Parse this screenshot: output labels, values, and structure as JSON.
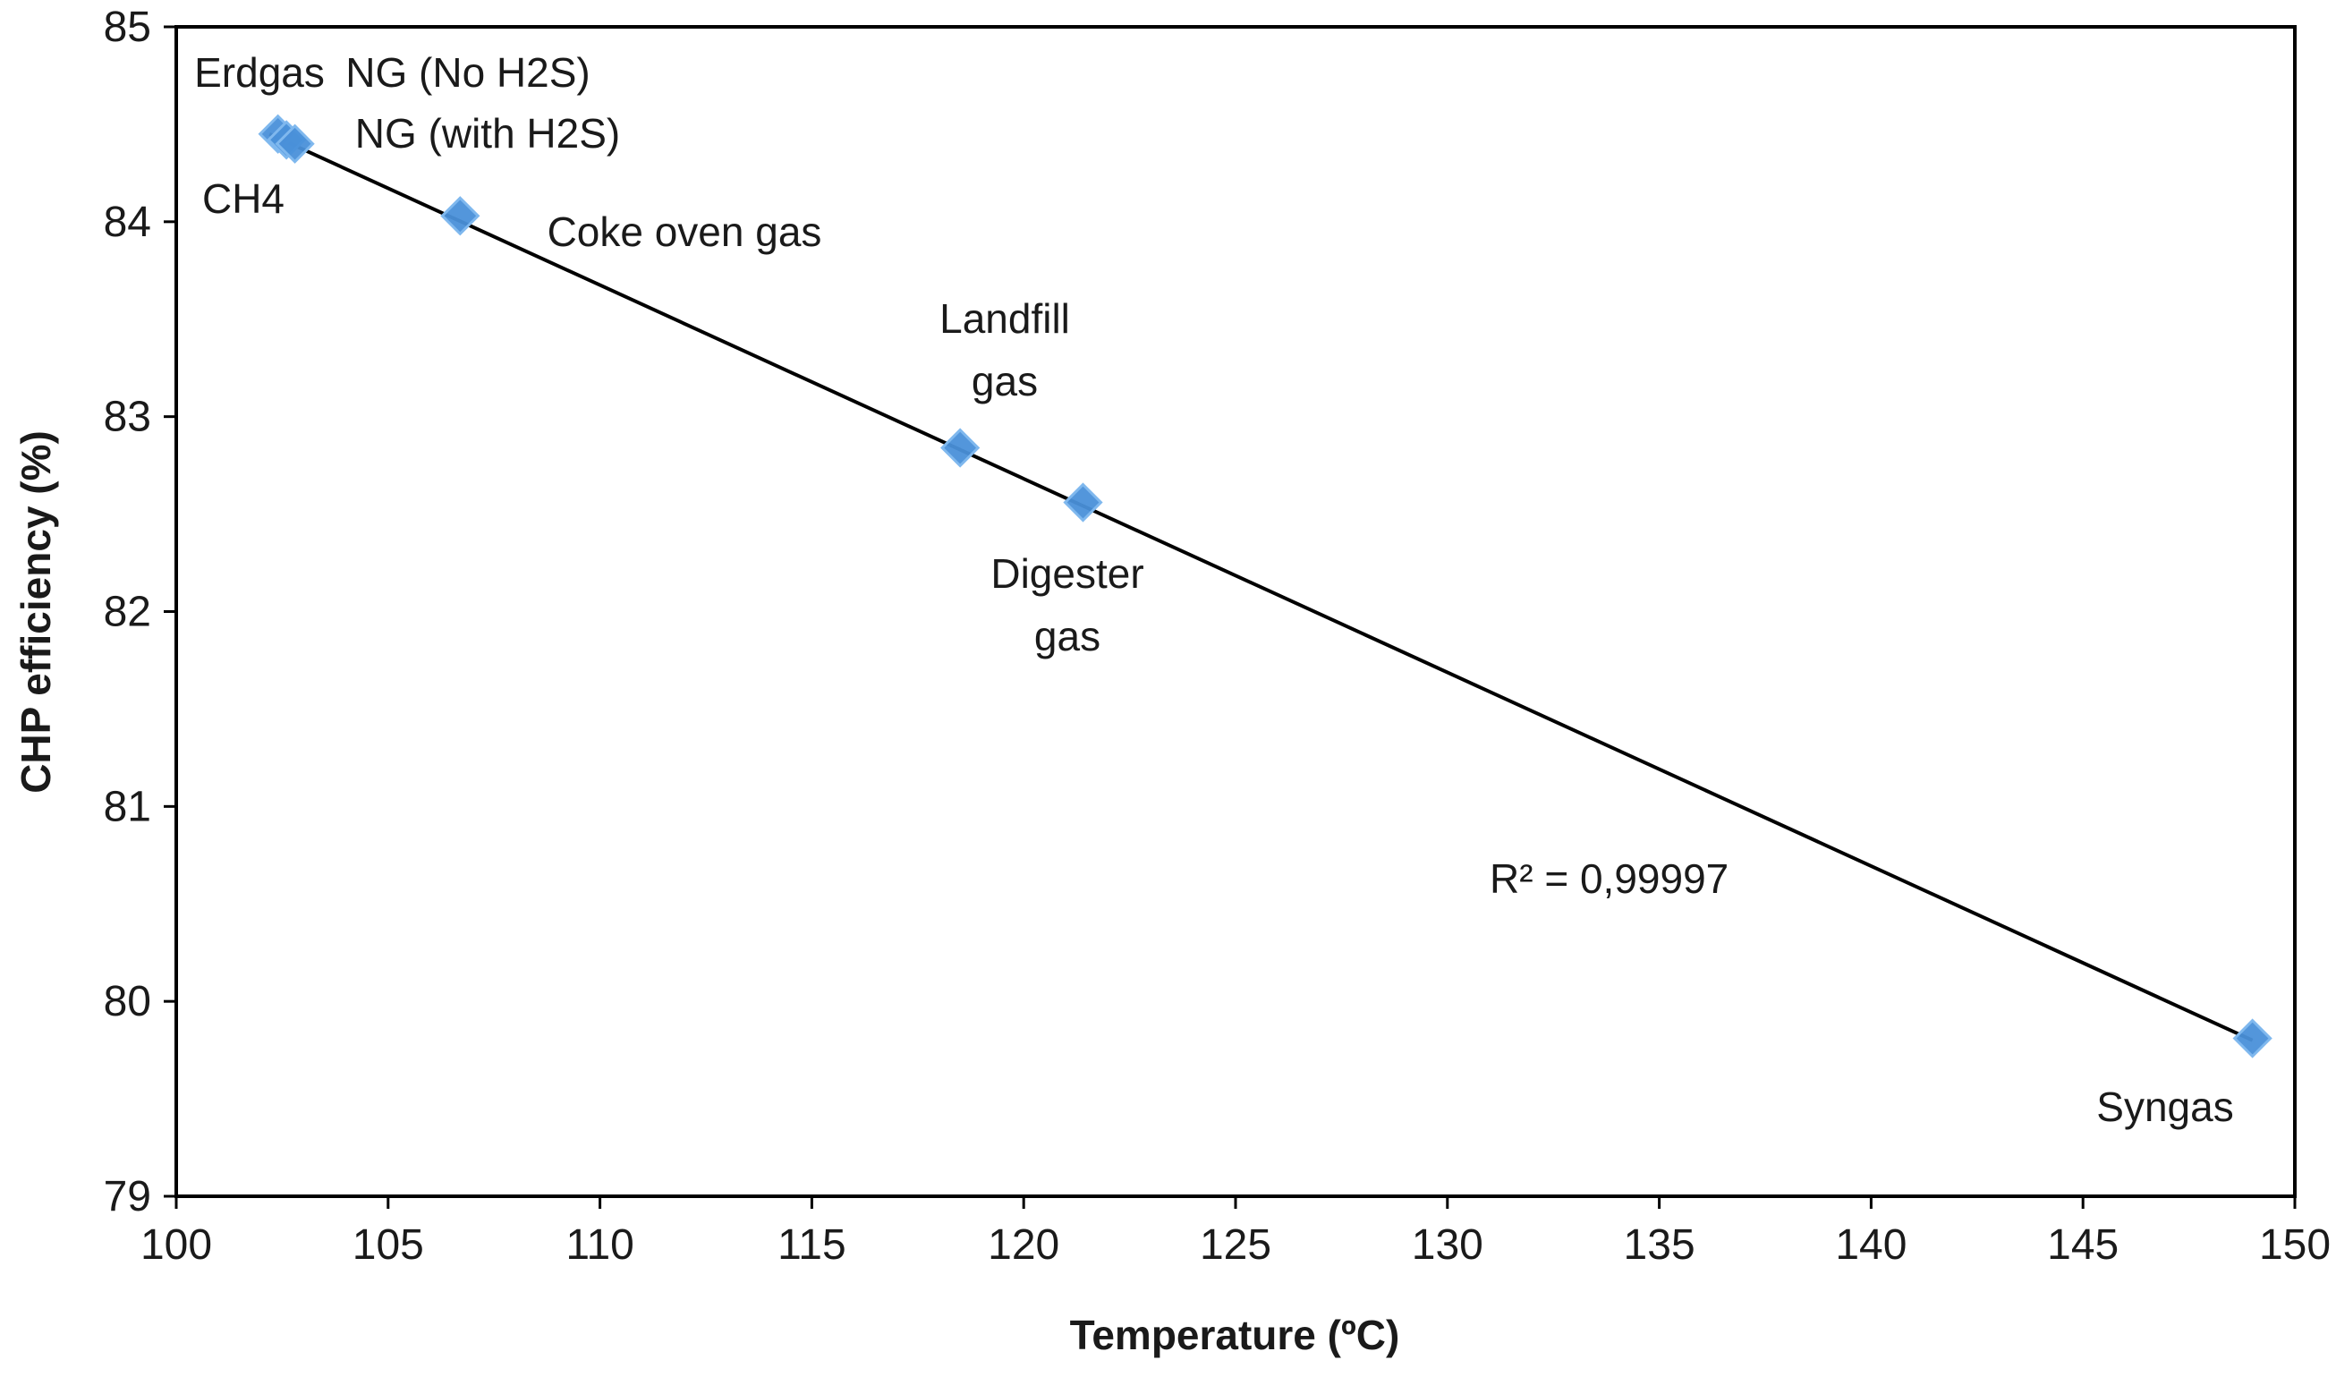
{
  "chart_data": {
    "type": "scatter",
    "title": "",
    "xlabel": "Temperature (ºC)",
    "ylabel": "CHP efficiency (%)",
    "xlim": [
      100,
      150
    ],
    "ylim": [
      79,
      85
    ],
    "xticks": [
      "100",
      "105",
      "110",
      "115",
      "120",
      "125",
      "130",
      "135",
      "140",
      "145",
      "150"
    ],
    "yticks": [
      "79",
      "80",
      "81",
      "82",
      "83",
      "84",
      "85"
    ],
    "marker_color": "#4a90d9",
    "trendline_color": "#000000",
    "points": [
      {
        "x": 102.4,
        "y": 84.45
      },
      {
        "x": 102.6,
        "y": 84.42
      },
      {
        "x": 102.8,
        "y": 84.4
      },
      {
        "x": 106.7,
        "y": 84.03
      },
      {
        "x": 118.5,
        "y": 82.84
      },
      {
        "x": 121.4,
        "y": 82.56
      },
      {
        "x": 149.0,
        "y": 79.81
      }
    ],
    "annotations": [
      {
        "text": "Erdgas",
        "lines": [
          "Erdgas"
        ]
      },
      {
        "text": "NG (No H2S)",
        "lines": [
          "NG (No H2S)"
        ]
      },
      {
        "text": "NG (with H2S)",
        "lines": [
          "NG (with H2S)"
        ]
      },
      {
        "text": "CH4",
        "lines": [
          "CH4"
        ]
      },
      {
        "text": "Coke oven gas",
        "lines": [
          "Coke oven gas"
        ]
      },
      {
        "text": "Landfill gas",
        "lines": [
          "Landfill",
          "gas"
        ]
      },
      {
        "text": "Digester gas",
        "lines": [
          "Digester",
          "gas"
        ]
      },
      {
        "text": "Syngas",
        "lines": [
          "Syngas"
        ]
      }
    ],
    "trendline": {
      "x": [
        102.2,
        149.0
      ],
      "y": [
        84.45,
        79.8
      ]
    },
    "r_squared_label": "R² = 0,99997"
  }
}
